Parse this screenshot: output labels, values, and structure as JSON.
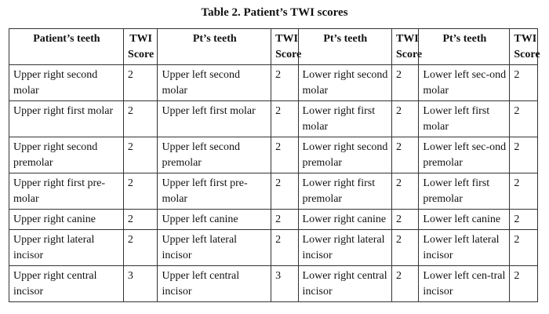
{
  "caption": "Table 2. Patient’s TWI scores",
  "headers": {
    "col1": "Patient’s teeth",
    "score": "TWI Score",
    "col3": "Pt’s teeth",
    "col5": "Pt’s teeth",
    "col7": "Pt’s teeth"
  },
  "rows": [
    {
      "ur": "Upper right second molar",
      "ur_s": "2",
      "ul": "Upper left second molar",
      "ul_s": "2",
      "lr": "Lower right second molar",
      "lr_s": "2",
      "ll": "Lower left sec-ond molar",
      "ll_s": "2"
    },
    {
      "ur": "Upper right first molar",
      "ur_s": "2",
      "ul": "Upper left first molar",
      "ul_s": "2",
      "lr": "Lower right first molar",
      "lr_s": "2",
      "ll": "Lower left first molar",
      "ll_s": "2"
    },
    {
      "ur": "Upper right second premolar",
      "ur_s": "2",
      "ul": "Upper left second premolar",
      "ul_s": "2",
      "lr": "Lower right second premolar",
      "lr_s": "2",
      "ll": "Lower left sec-ond premolar",
      "ll_s": "2"
    },
    {
      "ur": "Upper right first pre-molar",
      "ur_s": "2",
      "ul": "Upper left first pre-molar",
      "ul_s": "2",
      "lr": "Lower right first premolar",
      "lr_s": "2",
      "ll": "Lower left first premolar",
      "ll_s": "2"
    },
    {
      "ur": "Upper right canine",
      "ur_s": "2",
      "ul": "Upper left canine",
      "ul_s": "2",
      "lr": "Lower right canine",
      "lr_s": "2",
      "ll": "Lower left canine",
      "ll_s": "2"
    },
    {
      "ur": "Upper right lateral incisor",
      "ur_s": "2",
      "ul": "Upper left lateral incisor",
      "ul_s": "2",
      "lr": "Lower right lateral incisor",
      "lr_s": "2",
      "ll": "Lower left lateral incisor",
      "ll_s": "2"
    },
    {
      "ur": "Upper right central incisor",
      "ur_s": "3",
      "ul": "Upper left central incisor",
      "ul_s": "3",
      "lr": "Lower right central incisor",
      "lr_s": "2",
      "ll": "Lower left cen-tral incisor",
      "ll_s": "2"
    }
  ]
}
